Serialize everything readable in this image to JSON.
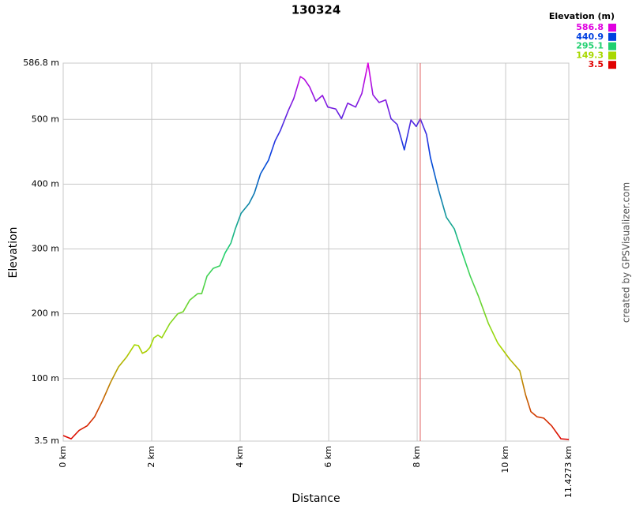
{
  "chart_data": {
    "type": "line",
    "title": "130324",
    "x_label": "Distance",
    "y_label": "Elevation",
    "credit": "created by GPSVisualizer.com",
    "x": [
      0,
      0.18,
      0.36,
      0.54,
      0.71,
      0.89,
      1.07,
      1.25,
      1.43,
      1.61,
      1.7,
      1.79,
      1.88,
      1.96,
      2.05,
      2.14,
      2.23,
      2.41,
      2.59,
      2.71,
      2.86,
      3.04,
      3.13,
      3.25,
      3.39,
      3.54,
      3.66,
      3.79,
      3.89,
      4.02,
      4.2,
      4.32,
      4.46,
      4.64,
      4.79,
      4.91,
      5.09,
      5.21,
      5.36,
      5.45,
      5.57,
      5.71,
      5.86,
      5.98,
      6.16,
      6.29,
      6.43,
      6.61,
      6.75,
      6.89,
      7.0,
      7.14,
      7.29,
      7.41,
      7.55,
      7.71,
      7.86,
      7.98,
      8.07,
      8.21,
      8.3,
      8.48,
      8.66,
      8.84,
      9.02,
      9.2,
      9.38,
      9.61,
      9.82,
      10.09,
      10.32,
      10.45,
      10.57,
      10.71,
      10.86,
      11.04,
      11.25,
      11.4273
    ],
    "values": [
      12,
      7,
      20,
      27,
      41,
      66,
      94,
      118,
      133,
      152,
      151,
      139,
      142,
      148,
      163,
      167,
      163,
      185,
      200,
      203,
      221,
      231,
      231,
      258,
      270,
      274,
      294,
      309,
      331,
      355,
      370,
      386,
      416,
      437,
      467,
      483,
      514,
      532,
      566,
      562,
      550,
      528,
      537,
      519,
      516,
      501,
      525,
      519,
      540,
      586.8,
      538,
      526,
      530,
      501,
      492,
      453,
      499,
      489,
      501,
      477,
      441,
      392,
      349,
      331,
      294,
      258,
      228,
      185,
      155,
      130,
      112,
      75,
      49,
      41,
      39,
      27,
      7,
      6
    ],
    "xlim": [
      0,
      11.4273
    ],
    "ylim": [
      3.5,
      586.8
    ],
    "xticks": [
      {
        "value": 0,
        "label": "0 km"
      },
      {
        "value": 2,
        "label": "2 km"
      },
      {
        "value": 4,
        "label": "4 km"
      },
      {
        "value": 6,
        "label": "6 km"
      },
      {
        "value": 8,
        "label": "8 km"
      },
      {
        "value": 10,
        "label": "10 km"
      },
      {
        "value": 11.4273,
        "label": "11.4273 km"
      }
    ],
    "yticks": [
      {
        "value": 3.5,
        "label": "3.5 m"
      },
      {
        "value": 100,
        "label": "100 m"
      },
      {
        "value": 200,
        "label": "200 m"
      },
      {
        "value": 300,
        "label": "300 m"
      },
      {
        "value": 400,
        "label": "400 m"
      },
      {
        "value": 500,
        "label": "500 m"
      },
      {
        "value": 586.8,
        "label": "586.8 m"
      }
    ],
    "grid": true,
    "marker_x": 8.07,
    "marker_color": "#e06060",
    "legend": {
      "title": "Elevation (m)",
      "position": "top-right",
      "items": [
        {
          "value": 586.8,
          "color": "#e000e0"
        },
        {
          "value": 440.9,
          "color": "#0040e0"
        },
        {
          "value": 295.1,
          "color": "#20d070"
        },
        {
          "value": 149.3,
          "color": "#a8d800"
        },
        {
          "value": 3.5,
          "color": "#e00000"
        }
      ]
    }
  }
}
